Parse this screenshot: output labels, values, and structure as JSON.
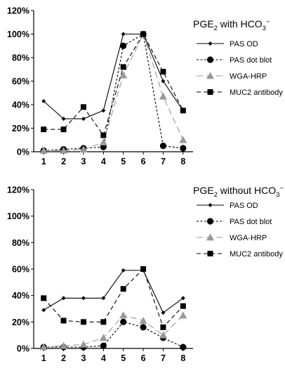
{
  "chart_data": [
    {
      "type": "line",
      "title": "PGE2 with HCO3−",
      "title_parts": {
        "main": "PGE",
        "sub": "2",
        "middle": " with HCO",
        "sub2": "3",
        "sup": "−"
      },
      "x": [
        "1",
        "2",
        "3",
        "4",
        "5",
        "6",
        "7",
        "8"
      ],
      "ylim": [
        0,
        120
      ],
      "yticks": [
        "0%",
        "20%",
        "40%",
        "60%",
        "80%",
        "100%",
        "120%"
      ],
      "series": [
        {
          "name": "PAS OD",
          "values": [
            43,
            28,
            28,
            35,
            100,
            100,
            60,
            35
          ],
          "color": "#000000",
          "marker": "diamond",
          "dash": "solid"
        },
        {
          "name": "PAS dot blot",
          "values": [
            1,
            2,
            3,
            4,
            90,
            100,
            5,
            3
          ],
          "color": "#000000",
          "marker": "circle",
          "dash": "dotted"
        },
        {
          "name": "WGA-HRP",
          "values": [
            1,
            1,
            2,
            8,
            65,
            100,
            47,
            10
          ],
          "color": "#999999",
          "marker": "triangle",
          "dash": "longdash"
        },
        {
          "name": "MUC2 antibody",
          "values": [
            19,
            19,
            38,
            14,
            72,
            100,
            68,
            35
          ],
          "color": "#000000",
          "marker": "square",
          "dash": "dashed"
        }
      ]
    },
    {
      "type": "line",
      "title": "PGE2 without HCO3−",
      "title_parts": {
        "main": "PGE",
        "sub": "2",
        "middle": " without HCO",
        "sub2": "3",
        "sup": "−"
      },
      "x": [
        "1",
        "2",
        "3",
        "4",
        "5",
        "6",
        "7",
        "8"
      ],
      "ylim": [
        0,
        120
      ],
      "yticks": [
        "0%",
        "20%",
        "40%",
        "60%",
        "80%",
        "100%",
        "120%"
      ],
      "series": [
        {
          "name": "PAS OD",
          "values": [
            29,
            38,
            38,
            38,
            59,
            59,
            27,
            38
          ],
          "color": "#000000",
          "marker": "diamond",
          "dash": "solid"
        },
        {
          "name": "PAS dot blot",
          "values": [
            1,
            1,
            1,
            2,
            20,
            16,
            8,
            1
          ],
          "color": "#000000",
          "marker": "circle",
          "dash": "dotted"
        },
        {
          "name": "WGA-HRP",
          "values": [
            1,
            2,
            3,
            8,
            25,
            21,
            10,
            25
          ],
          "color": "#999999",
          "marker": "triangle",
          "dash": "longdash"
        },
        {
          "name": "MUC2 antibody",
          "values": [
            38,
            21,
            20,
            20,
            45,
            60,
            16,
            32
          ],
          "color": "#000000",
          "marker": "square",
          "dash": "dashed"
        }
      ]
    }
  ]
}
